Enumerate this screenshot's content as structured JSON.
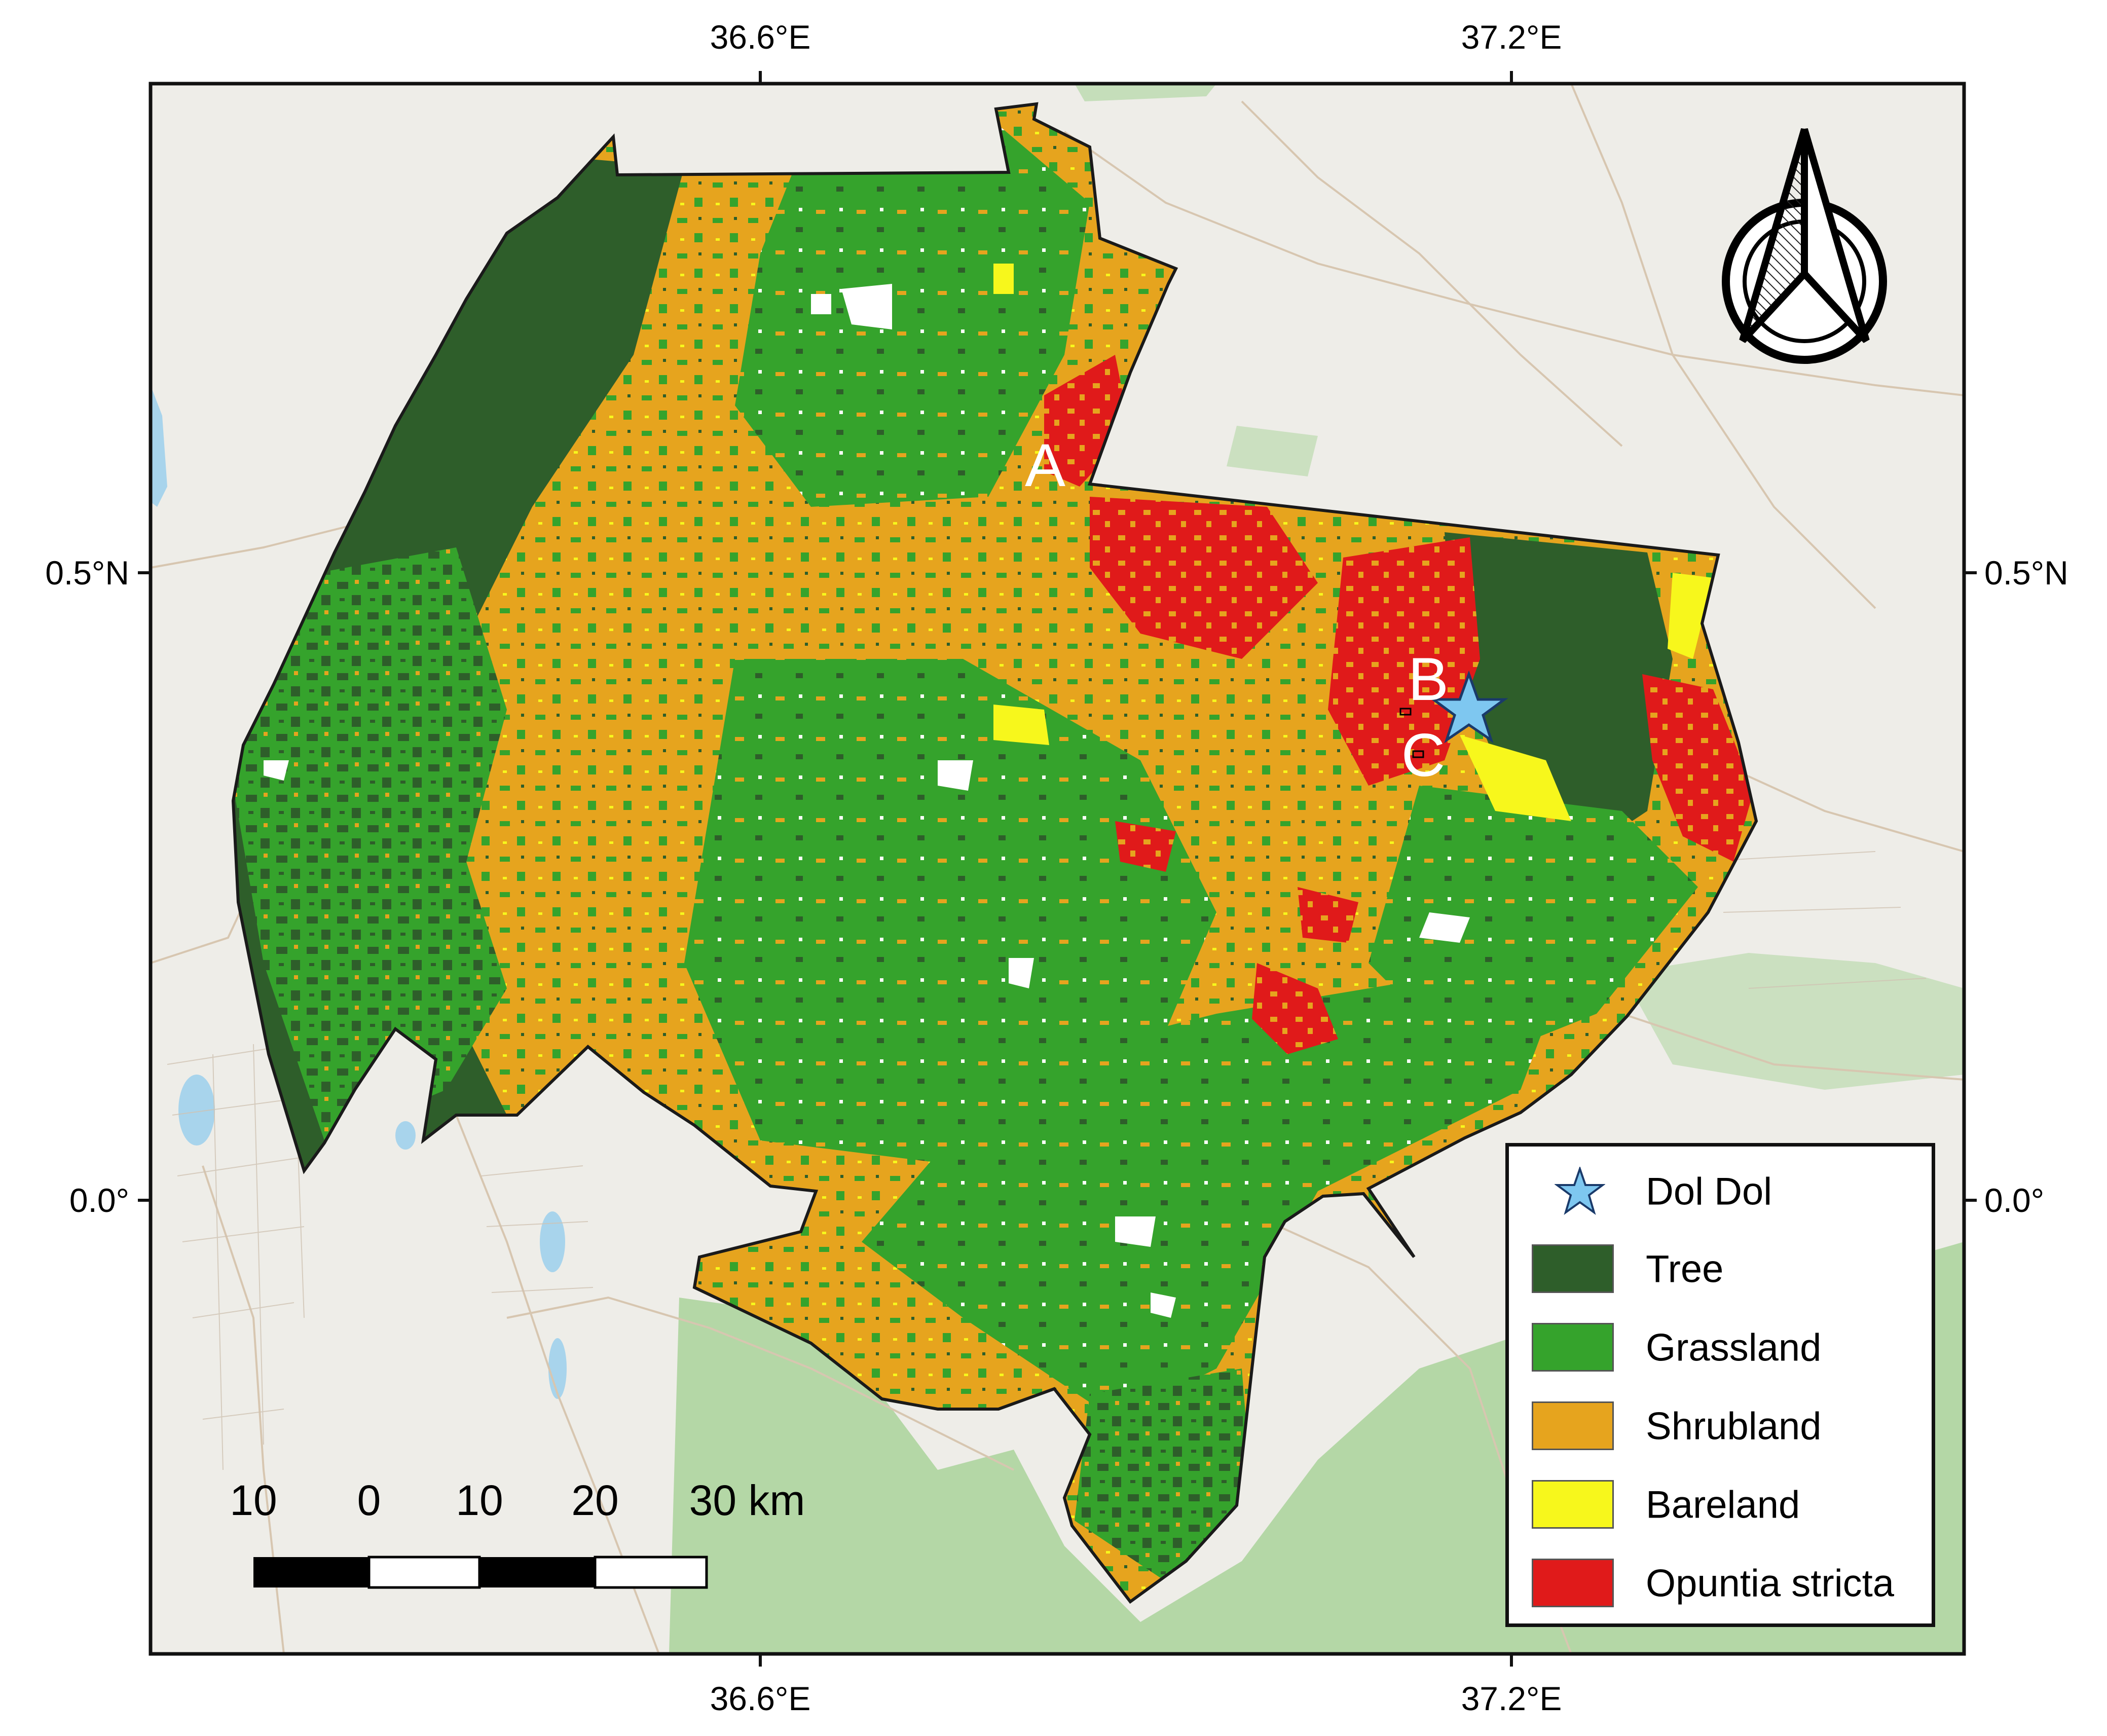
{
  "axes": {
    "top_ticks": [
      "36.6°E",
      "37.2°E"
    ],
    "bottom_ticks": [
      "36.6°E",
      "37.2°E"
    ],
    "left_ticks": [
      "0.5°N",
      "0.0°"
    ],
    "right_ticks": [
      "0.5°N",
      "0.0°"
    ]
  },
  "sites": [
    "A",
    "B",
    "C"
  ],
  "scale_bar": {
    "labels": [
      "10",
      "0",
      "10",
      "20",
      "30 km"
    ]
  },
  "legend": {
    "items": [
      {
        "label": "Dol Dol",
        "kind": "star",
        "color": "#7ec7f0"
      },
      {
        "label": "Tree",
        "kind": "swatch",
        "color": "#2e5e2a"
      },
      {
        "label": "Grassland",
        "kind": "swatch",
        "color": "#35a32c"
      },
      {
        "label": "Shrubland",
        "kind": "swatch",
        "color": "#e6a41e"
      },
      {
        "label": "Bareland",
        "kind": "swatch",
        "color": "#f7f71c"
      },
      {
        "label": "Opuntia stricta",
        "kind": "swatch",
        "color": "#e01a1a"
      }
    ]
  },
  "north_arrow": {
    "icon": "north-arrow-icon"
  },
  "basemap": {
    "land_color": "#eeede8",
    "park_color": "#a9d39a",
    "water_color": "#a8d4ec",
    "road_color": "#d8c8b4"
  }
}
